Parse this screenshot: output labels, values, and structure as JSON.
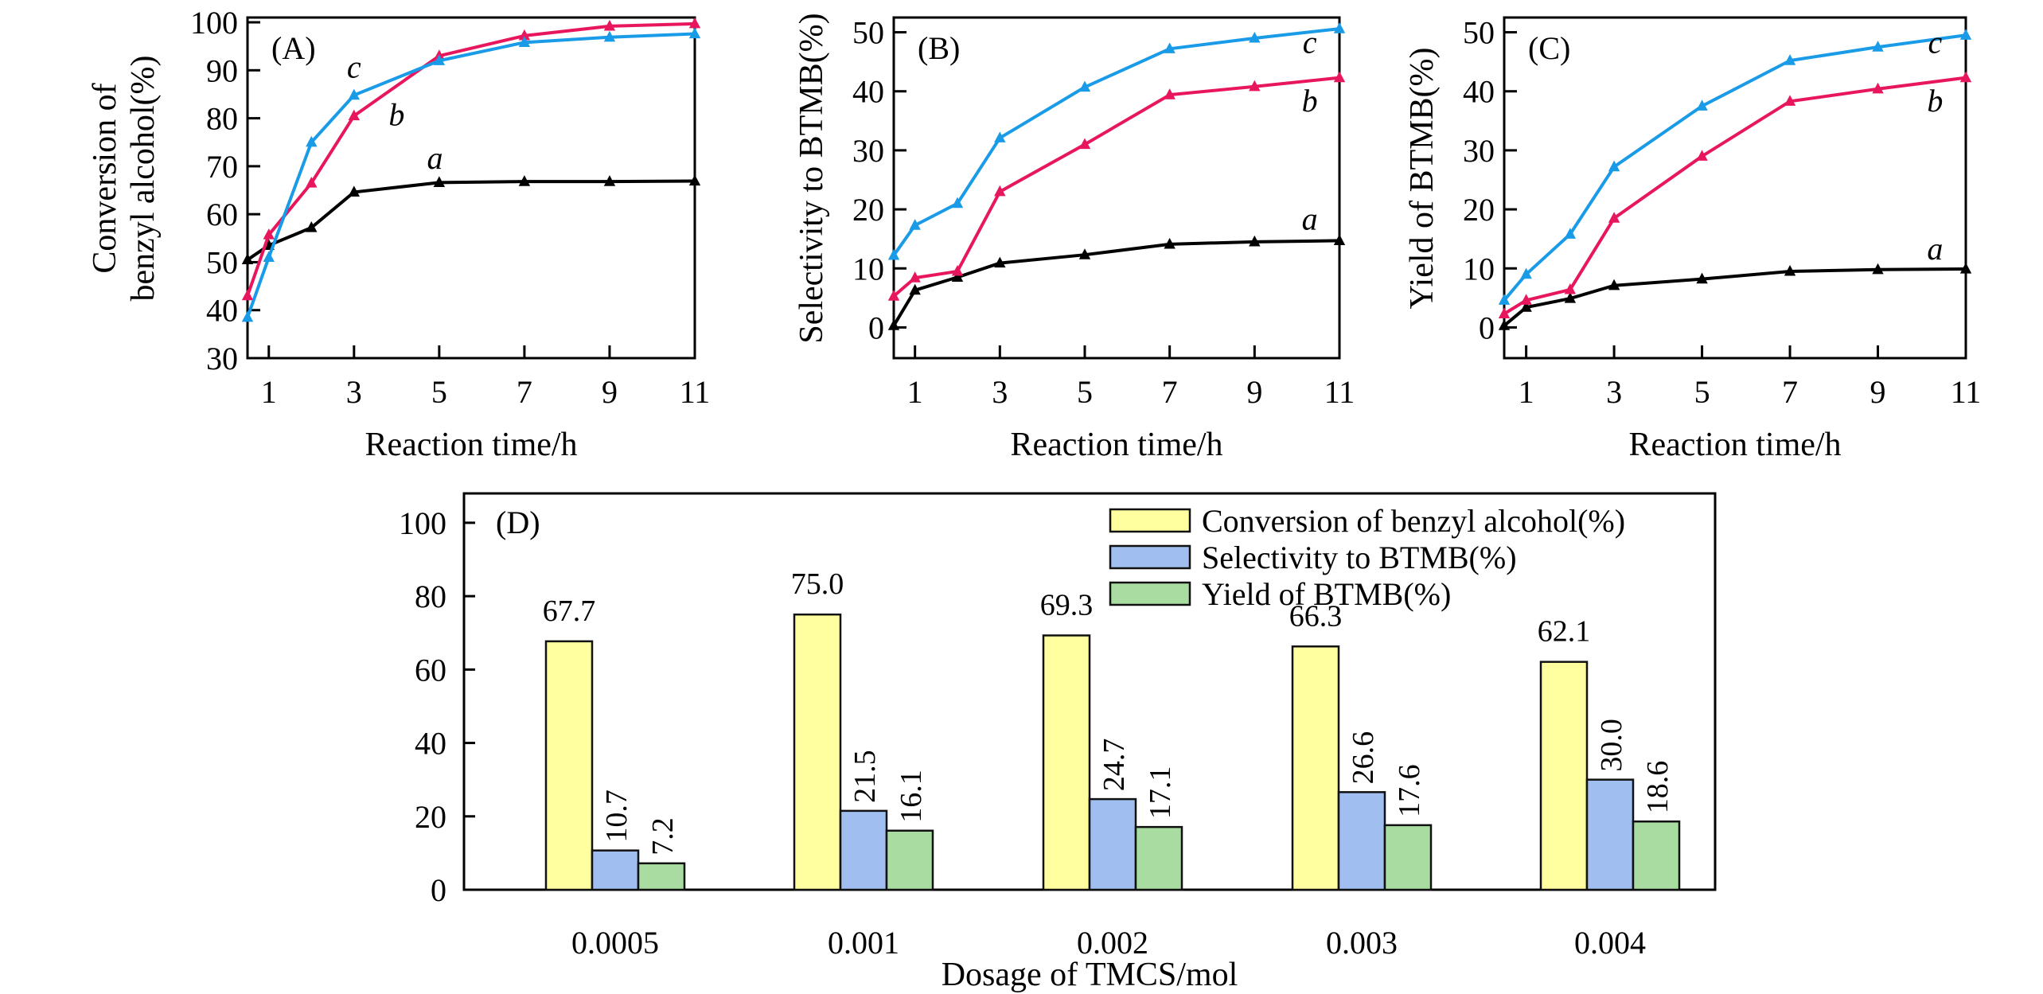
{
  "chart_data": [
    {
      "type": "line",
      "panel": "(A)",
      "xlabel": "Reaction time/h",
      "ylabel_lines": [
        "Conversion of",
        "benzyl alcohol(%)"
      ],
      "xlim": [
        0.5,
        11
      ],
      "ylim": [
        30,
        101
      ],
      "xticks": [
        1,
        3,
        5,
        7,
        9,
        11
      ],
      "yticks": [
        30,
        40,
        50,
        60,
        70,
        80,
        90,
        100
      ],
      "x": [
        0.5,
        1,
        2,
        3,
        5,
        7,
        9,
        11
      ],
      "series": [
        {
          "name": "a",
          "color": "#000000",
          "values": [
            50.5,
            53.5,
            57.2,
            64.6,
            66.6,
            66.8,
            66.8,
            66.9
          ]
        },
        {
          "name": "b",
          "color": "#e8175d",
          "values": [
            43,
            55.7,
            66.5,
            80.5,
            93,
            97.2,
            99.2,
            99.7
          ]
        },
        {
          "name": "c",
          "color": "#1a9be8",
          "values": [
            38.5,
            51,
            75,
            84.8,
            92,
            95.8,
            96.9,
            97.6
          ]
        }
      ],
      "curve_labels": [
        {
          "text": "a",
          "x": 4.9,
          "y": 69.5
        },
        {
          "text": "b",
          "x": 4.0,
          "y": 78.5
        },
        {
          "text": "c",
          "x": 3.0,
          "y": 88.5
        }
      ]
    },
    {
      "type": "line",
      "panel": "(B)",
      "xlabel": "Reaction time/h",
      "ylabel_lines": [
        "Selectivity to BTMB(%)"
      ],
      "xlim": [
        0.5,
        11
      ],
      "ylim": [
        -5.2,
        52.5
      ],
      "xticks": [
        1,
        3,
        5,
        7,
        9,
        11
      ],
      "yticks": [
        0,
        10,
        20,
        30,
        40,
        50
      ],
      "x": [
        0.5,
        1,
        2,
        3,
        5,
        7,
        9,
        11
      ],
      "series": [
        {
          "name": "a",
          "color": "#000000",
          "values": [
            0.3,
            6.3,
            8.5,
            10.9,
            12.3,
            14.1,
            14.5,
            14.7
          ]
        },
        {
          "name": "b",
          "color": "#e8175d",
          "values": [
            5.3,
            8.4,
            9.5,
            23,
            31,
            39.4,
            40.8,
            42.3
          ]
        },
        {
          "name": "c",
          "color": "#1a9be8",
          "values": [
            12.2,
            17.3,
            21,
            32.1,
            40.7,
            47.2,
            49,
            50.6
          ]
        }
      ],
      "curve_labels": [
        {
          "text": "a",
          "x": 10.3,
          "y": 16.6
        },
        {
          "text": "b",
          "x": 10.3,
          "y": 36.6
        },
        {
          "text": "c",
          "x": 10.3,
          "y": 46.5
        }
      ]
    },
    {
      "type": "line",
      "panel": "(C)",
      "xlabel": "Reaction time/h",
      "ylabel_lines": [
        "Yield of BTMB(%)"
      ],
      "xlim": [
        0.5,
        11
      ],
      "ylim": [
        -5.2,
        52.5
      ],
      "xticks": [
        1,
        3,
        5,
        7,
        9,
        11
      ],
      "yticks": [
        0,
        10,
        20,
        30,
        40,
        50
      ],
      "x": [
        0.5,
        1,
        2,
        3,
        5,
        7,
        9,
        11
      ],
      "series": [
        {
          "name": "a",
          "color": "#000000",
          "values": [
            0.3,
            3.4,
            4.9,
            7.1,
            8.2,
            9.5,
            9.8,
            9.9
          ]
        },
        {
          "name": "b",
          "color": "#e8175d",
          "values": [
            2.3,
            4.6,
            6.4,
            18.5,
            29,
            38.3,
            40.4,
            42.3
          ]
        },
        {
          "name": "c",
          "color": "#1a9be8",
          "values": [
            4.6,
            9,
            15.8,
            27.2,
            37.5,
            45.2,
            47.5,
            49.5
          ]
        }
      ],
      "curve_labels": [
        {
          "text": "a",
          "x": 10.3,
          "y": 11.5
        },
        {
          "text": "b",
          "x": 10.3,
          "y": 36.6
        },
        {
          "text": "c",
          "x": 10.3,
          "y": 46.5
        }
      ]
    },
    {
      "type": "bar",
      "panel": "(D)",
      "xlabel": "Dosage of TMCS/mol",
      "ylabel": "",
      "ylim": [
        0,
        108
      ],
      "yticks": [
        0,
        20,
        40,
        60,
        80,
        100
      ],
      "categories": [
        "0.0005",
        "0.001",
        "0.002",
        "0.003",
        "0.004"
      ],
      "series": [
        {
          "name": "Conversion of benzyl alcohol(%)",
          "color": "#ffffa0",
          "values": [
            67.7,
            75.0,
            69.3,
            66.3,
            62.1
          ],
          "labels": [
            "67.7",
            "75.0",
            "69.3",
            "66.3",
            "62.1"
          ],
          "label_rotated": false
        },
        {
          "name": "Selectivity to BTMB(%)",
          "color": "#a0bff0",
          "values": [
            10.7,
            21.5,
            24.7,
            26.6,
            30.0
          ],
          "labels": [
            "10.7",
            "21.5",
            "24.7",
            "26.6",
            "30.0"
          ],
          "label_rotated": true
        },
        {
          "name": "Yield of BTMB(%)",
          "color": "#a8dca0",
          "values": [
            7.2,
            16.1,
            17.1,
            17.6,
            18.6
          ],
          "labels": [
            "7.2",
            "16.1",
            "17.1",
            "17.6",
            "18.6"
          ],
          "label_rotated": true
        }
      ],
      "legend_position": "top-right"
    }
  ]
}
